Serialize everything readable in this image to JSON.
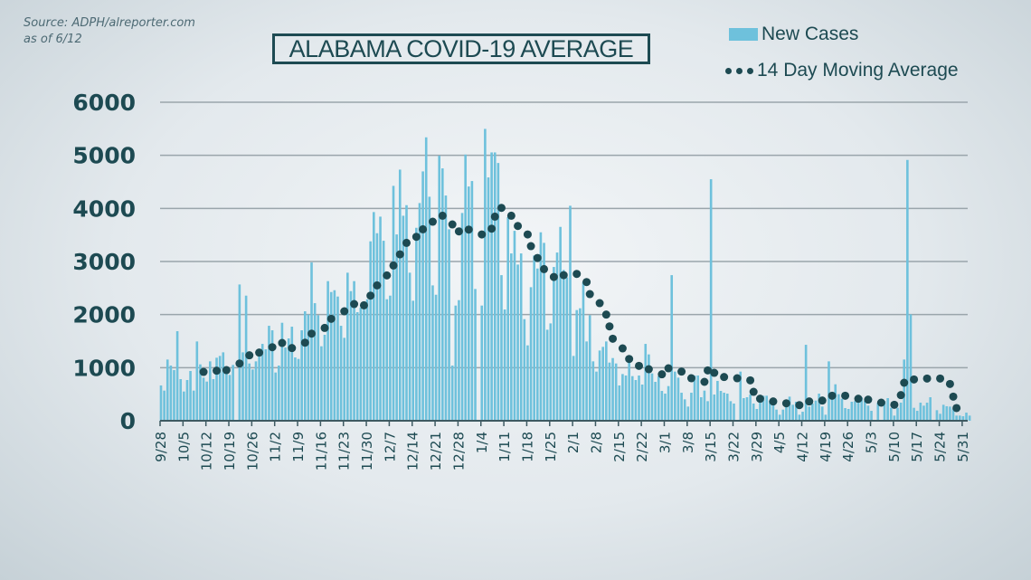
{
  "source": {
    "line1": "Source: ADPH/alreporter.com",
    "line2": "as of 6/12"
  },
  "chart_data": {
    "type": "bar",
    "title": "ALABAMA COVID-19 AVERAGE",
    "xlabel": "",
    "ylabel": "",
    "ylim": [
      0,
      6000
    ],
    "yticks": [
      "0",
      "1000",
      "2000",
      "3000",
      "4000",
      "5000",
      "6000"
    ],
    "grid": true,
    "legend_placement": "top-right",
    "colors": {
      "bars": "#6ec1dc",
      "dots": "#1d4a52",
      "text": "#1d4a52"
    },
    "x_start": "9/28/2020",
    "xticks": [
      "9/28",
      "10/5",
      "10/12",
      "10/19",
      "10/26",
      "11/2",
      "11/9",
      "11/16",
      "11/23",
      "11/30",
      "12/7",
      "12/14",
      "12/21",
      "12/28",
      "1/4",
      "1/11",
      "1/18",
      "1/25",
      "2/1",
      "2/8",
      "2/15",
      "2/22",
      "3/1",
      "3/8",
      "3/15",
      "3/22",
      "3/29",
      "4/5",
      "4/12",
      "4/19",
      "4/26",
      "5/3",
      "5/10",
      "5/17",
      "5/24",
      "5/31"
    ],
    "series": [
      {
        "name": "New Cases",
        "type": "bar",
        "values": [
          665,
          568,
          1153,
          1040,
          954,
          1687,
          784,
          551,
          767,
          937,
          568,
          1494,
          1062,
          812,
          738,
          1119,
          784,
          1187,
          1221,
          1289,
          926,
          863,
          1051,
          0,
          2567,
          1289,
          2357,
          1079,
          966,
          1119,
          1221,
          1448,
          1346,
          1789,
          1704,
          909,
          1040,
          1846,
          1380,
          1551,
          1772,
          1193,
          1164,
          1704,
          2062,
          2000,
          2982,
          2215,
          1988,
          1403,
          1619,
          2630,
          2425,
          2459,
          2340,
          1789,
          1562,
          2789,
          2442,
          2630,
          2045,
          2130,
          2215,
          2289,
          3380,
          3931,
          3533,
          3845,
          3391,
          2289,
          2357,
          4425,
          3510,
          4731,
          3862,
          4061,
          2789,
          2261,
          3635,
          4101,
          4697,
          5339,
          4220,
          2550,
          2374,
          4993,
          4754,
          4243,
          3607,
          1040,
          2170,
          2272,
          3914,
          5015,
          4413,
          4516,
          2482,
          0,
          2170,
          5498,
          4584,
          5055,
          5055,
          4856,
          2743,
          2096,
          3834,
          3152,
          3578,
          2942,
          3152,
          1914,
          1420,
          2516,
          3113,
          2868,
          3550,
          3351,
          1715,
          1834,
          2897,
          3169,
          3652,
          2840,
          2700,
          4050,
          1221,
          2085,
          2119,
          2613,
          1494,
          1988,
          1119,
          926,
          1323,
          1392,
          1494,
          1096,
          1181,
          1079,
          665,
          880,
          852,
          1119,
          841,
          767,
          852,
          682,
          1448,
          1250,
          892,
          733,
          841,
          562,
          511,
          653,
          2743,
          926,
          812,
          528,
          403,
          267,
          528,
          852,
          852,
          443,
          568,
          369,
          4550,
          494,
          750,
          562,
          528,
          511,
          369,
          324,
          17,
          926,
          426,
          443,
          494,
          324,
          222,
          358,
          471,
          471,
          380,
          341,
          210,
          114,
          210,
          324,
          454,
          301,
          358,
          114,
          170,
          1431,
          267,
          324,
          380,
          511,
          267,
          114,
          1119,
          415,
          687,
          500,
          415,
          239,
          222,
          358,
          369,
          426,
          437,
          380,
          284,
          187,
          0,
          341,
          0,
          369,
          426,
          244,
          97,
          244,
          341,
          1153,
          4913,
          2005,
          244,
          187,
          341,
          284,
          341,
          443,
          0,
          199,
          131,
          301,
          273,
          267,
          227,
          97,
          97,
          85,
          153,
          97
        ]
      },
      {
        "name": "14 Day Moving Average",
        "type": "dots",
        "points": [
          [
            "10/11/2020",
            920
          ],
          [
            "10/15/2020",
            943
          ],
          [
            "10/18/2020",
            954
          ],
          [
            "10/22/2020",
            1079
          ],
          [
            "10/25/2020",
            1233
          ],
          [
            "10/28/2020",
            1284
          ],
          [
            "11/1/2020",
            1386
          ],
          [
            "11/4/2020",
            1465
          ],
          [
            "11/7/2020",
            1369
          ],
          [
            "11/11/2020",
            1471
          ],
          [
            "11/13/2020",
            1641
          ],
          [
            "11/17/2020",
            1749
          ],
          [
            "11/19/2020",
            1920
          ],
          [
            "11/23/2020",
            2062
          ],
          [
            "11/26/2020",
            2198
          ],
          [
            "11/29/2020",
            2175
          ],
          [
            "12/1/2020",
            2357
          ],
          [
            "12/3/2020",
            2550
          ],
          [
            "12/6/2020",
            2738
          ],
          [
            "12/8/2020",
            2925
          ],
          [
            "12/10/2020",
            3135
          ],
          [
            "12/12/2020",
            3351
          ],
          [
            "12/15/2020",
            3465
          ],
          [
            "12/17/2020",
            3607
          ],
          [
            "12/20/2020",
            3749
          ],
          [
            "12/23/2020",
            3862
          ],
          [
            "12/26/2020",
            3698
          ],
          [
            "12/28/2020",
            3567
          ],
          [
            "12/31/2020",
            3601
          ],
          [
            "1/4/2021",
            3510
          ],
          [
            "1/7/2021",
            3618
          ],
          [
            "1/8/2021",
            3845
          ],
          [
            "1/10/2021",
            4010
          ],
          [
            "1/13/2021",
            3862
          ],
          [
            "1/15/2021",
            3669
          ],
          [
            "1/18/2021",
            3510
          ],
          [
            "1/19/2021",
            3289
          ],
          [
            "1/21/2021",
            3067
          ],
          [
            "1/23/2021",
            2857
          ],
          [
            "1/26/2021",
            2709
          ],
          [
            "1/29/2021",
            2743
          ],
          [
            "2/2/2021",
            2766
          ],
          [
            "2/5/2021",
            2613
          ],
          [
            "2/6/2021",
            2386
          ],
          [
            "2/9/2021",
            2215
          ],
          [
            "2/11/2021",
            2000
          ],
          [
            "2/12/2021",
            1778
          ],
          [
            "2/13/2021",
            1545
          ],
          [
            "2/16/2021",
            1363
          ],
          [
            "2/18/2021",
            1164
          ],
          [
            "2/21/2021",
            1034
          ],
          [
            "2/24/2021",
            971
          ],
          [
            "2/28/2021",
            875
          ],
          [
            "3/2/2021",
            988
          ],
          [
            "3/6/2021",
            926
          ],
          [
            "3/9/2021",
            801
          ],
          [
            "3/13/2021",
            733
          ],
          [
            "3/14/2021",
            949
          ],
          [
            "3/16/2021",
            903
          ],
          [
            "3/19/2021",
            824
          ],
          [
            "3/23/2021",
            801
          ],
          [
            "3/27/2021",
            761
          ],
          [
            "3/28/2021",
            545
          ],
          [
            "3/30/2021",
            415
          ],
          [
            "4/3/2021",
            364
          ],
          [
            "4/7/2021",
            329
          ],
          [
            "4/11/2021",
            295
          ],
          [
            "4/14/2021",
            364
          ],
          [
            "4/18/2021",
            381
          ],
          [
            "4/21/2021",
            471
          ],
          [
            "4/25/2021",
            471
          ],
          [
            "4/29/2021",
            415
          ],
          [
            "5/2/2021",
            398
          ],
          [
            "5/6/2021",
            341
          ],
          [
            "5/10/2021",
            301
          ],
          [
            "5/12/2021",
            483
          ],
          [
            "5/13/2021",
            716
          ],
          [
            "5/16/2021",
            778
          ],
          [
            "5/20/2021",
            795
          ],
          [
            "5/24/2021",
            795
          ],
          [
            "5/27/2021",
            693
          ],
          [
            "5/28/2021",
            454
          ],
          [
            "5/29/2021",
            239
          ]
        ]
      }
    ]
  }
}
